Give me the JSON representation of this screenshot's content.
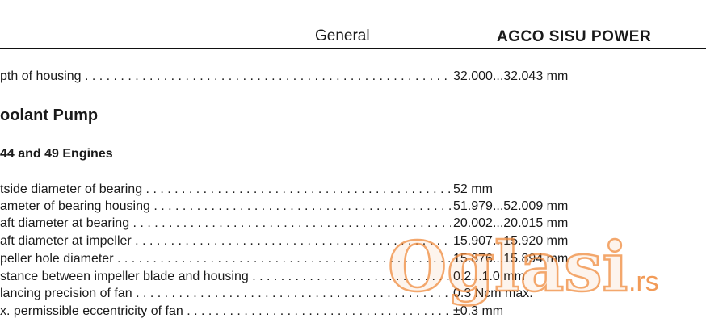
{
  "header": {
    "section": "General",
    "brand": "AGCO SISU POWER"
  },
  "housing_row": {
    "label": "pth of housing",
    "value": "32.000...32.043 mm"
  },
  "section": {
    "title": "oolant Pump",
    "subtitle": "44 and 49 Engines"
  },
  "specs": [
    {
      "label": "tside diameter of bearing",
      "value": "52 mm"
    },
    {
      "label": "ameter of bearing housing",
      "value": "51.979...52.009 mm"
    },
    {
      "label": "aft diameter at bearing",
      "value": "20.002...20.015 mm"
    },
    {
      "label": "aft diameter at impeller",
      "value": "15.907...15.920 mm"
    },
    {
      "label": "peller hole diameter",
      "value": "15.876...15.894 mm"
    },
    {
      "label": "stance between impeller blade and housing",
      "value": "0.2...1.0 mm"
    },
    {
      "label": "lancing precision of fan",
      "value": "0.3 Ncm max."
    },
    {
      "label": "x. permissible eccentricity of fan",
      "value": "±0.3 mm"
    }
  ],
  "watermark": {
    "text": "Oglasi",
    "suffix": ".rs",
    "color": "#f08a3c"
  }
}
